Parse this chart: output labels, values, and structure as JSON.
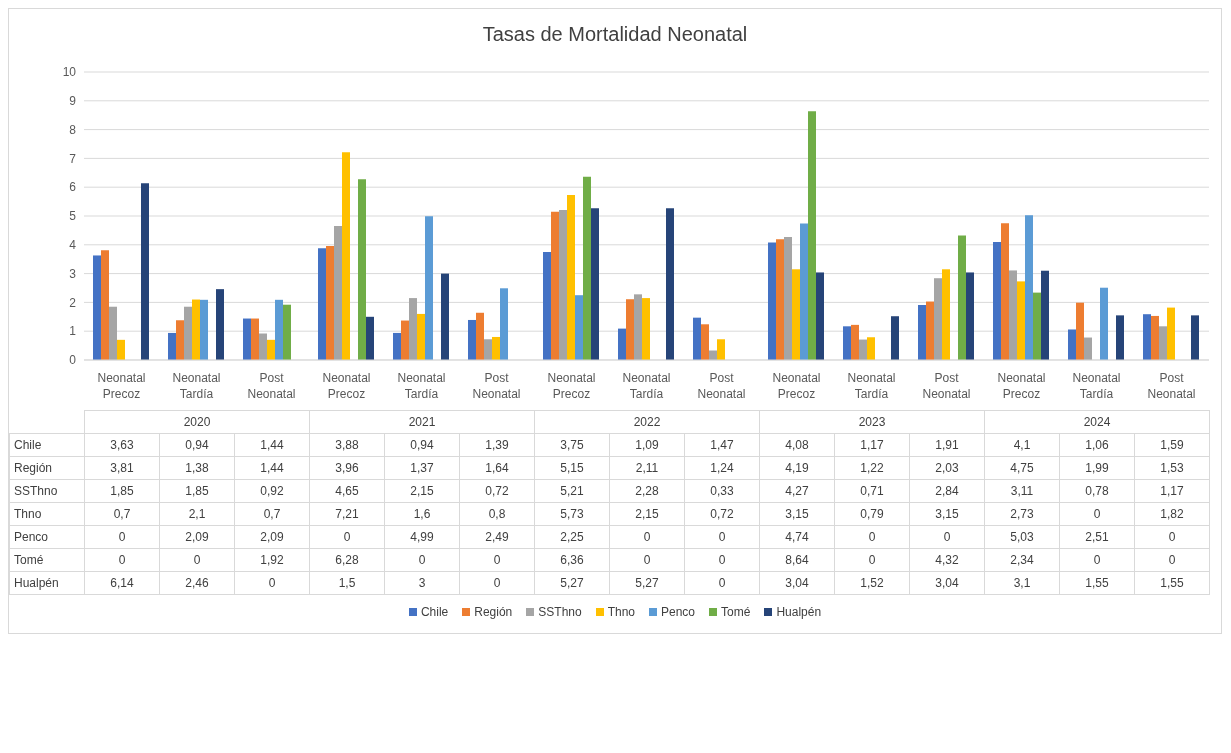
{
  "chart_data": {
    "type": "bar",
    "title": "Tasas de Mortalidad Neonatal",
    "categories": [
      "Neonatal Precoz",
      "Neonatal Tardía",
      "Post Neonatal",
      "Neonatal Precoz",
      "Neonatal Tardía",
      "Post Neonatal",
      "Neonatal Precoz",
      "Neonatal Tardía",
      "Post Neonatal",
      "Neonatal Precoz",
      "Neonatal Tardía",
      "Post Neonatal",
      "Neonatal Precoz",
      "Neonatal Tardía",
      "Post Neonatal"
    ],
    "annotations": [
      "2020",
      "2021",
      "2022",
      "2023",
      "2024"
    ],
    "ylim": [
      0,
      10
    ],
    "yticks": [
      0,
      1,
      2,
      3,
      4,
      5,
      6,
      7,
      8,
      9,
      10
    ],
    "grid": "y",
    "legend": "bottom",
    "series": [
      {
        "name": "Chile",
        "color": "#4472c4",
        "values": [
          3.63,
          0.94,
          1.44,
          3.88,
          0.94,
          1.39,
          3.75,
          1.09,
          1.47,
          4.08,
          1.17,
          1.91,
          4.1,
          1.06,
          1.59
        ],
        "value_labels": [
          "3,63",
          "0,94",
          "1,44",
          "3,88",
          "0,94",
          "1,39",
          "3,75",
          "1,09",
          "1,47",
          "4,08",
          "1,17",
          "1,91",
          "4,1",
          "1,06",
          "1,59"
        ]
      },
      {
        "name": "Región",
        "color": "#ed7d31",
        "values": [
          3.81,
          1.38,
          1.44,
          3.96,
          1.37,
          1.64,
          5.15,
          2.11,
          1.24,
          4.19,
          1.22,
          2.03,
          4.75,
          1.99,
          1.53
        ],
        "value_labels": [
          "3,81",
          "1,38",
          "1,44",
          "3,96",
          "1,37",
          "1,64",
          "5,15",
          "2,11",
          "1,24",
          "4,19",
          "1,22",
          "2,03",
          "4,75",
          "1,99",
          "1,53"
        ]
      },
      {
        "name": "SSThno",
        "color": "#a5a5a5",
        "values": [
          1.85,
          1.85,
          0.92,
          4.65,
          2.15,
          0.72,
          5.21,
          2.28,
          0.33,
          4.27,
          0.71,
          2.84,
          3.11,
          0.78,
          1.17
        ],
        "value_labels": [
          "1,85",
          "1,85",
          "0,92",
          "4,65",
          "2,15",
          "0,72",
          "5,21",
          "2,28",
          "0,33",
          "4,27",
          "0,71",
          "2,84",
          "3,11",
          "0,78",
          "1,17"
        ]
      },
      {
        "name": "Thno",
        "color": "#ffc000",
        "values": [
          0.7,
          2.1,
          0.7,
          7.21,
          1.6,
          0.8,
          5.73,
          2.15,
          0.72,
          3.15,
          0.79,
          3.15,
          2.73,
          0,
          1.82
        ],
        "value_labels": [
          "0,7",
          "2,1",
          "0,7",
          "7,21",
          "1,6",
          "0,8",
          "5,73",
          "2,15",
          "0,72",
          "3,15",
          "0,79",
          "3,15",
          "2,73",
          "0",
          "1,82"
        ]
      },
      {
        "name": "Penco",
        "color": "#5b9bd5",
        "values": [
          0,
          2.09,
          2.09,
          0,
          4.99,
          2.49,
          2.25,
          0,
          0,
          4.74,
          0,
          0,
          5.03,
          2.51,
          0
        ],
        "value_labels": [
          "0",
          "2,09",
          "2,09",
          "0",
          "4,99",
          "2,49",
          "2,25",
          "0",
          "0",
          "4,74",
          "0",
          "0",
          "5,03",
          "2,51",
          "0"
        ]
      },
      {
        "name": "Tomé",
        "color": "#70ad47",
        "values": [
          0,
          0,
          1.92,
          6.28,
          0,
          0,
          6.36,
          0,
          0,
          8.64,
          0,
          4.32,
          2.34,
          0,
          0
        ],
        "value_labels": [
          "0",
          "0",
          "1,92",
          "6,28",
          "0",
          "0",
          "6,36",
          "0",
          "0",
          "8,64",
          "0",
          "4,32",
          "2,34",
          "0",
          "0"
        ]
      },
      {
        "name": "Hualpén",
        "color": "#264478",
        "values": [
          6.14,
          2.46,
          0,
          1.5,
          3,
          0,
          5.27,
          5.27,
          0,
          3.04,
          1.52,
          3.04,
          3.1,
          1.55,
          1.55
        ],
        "value_labels": [
          "6,14",
          "2,46",
          "0",
          "1,5",
          "3",
          "0",
          "5,27",
          "5,27",
          "0",
          "3,04",
          "1,52",
          "3,04",
          "3,1",
          "1,55",
          "1,55"
        ]
      }
    ]
  }
}
